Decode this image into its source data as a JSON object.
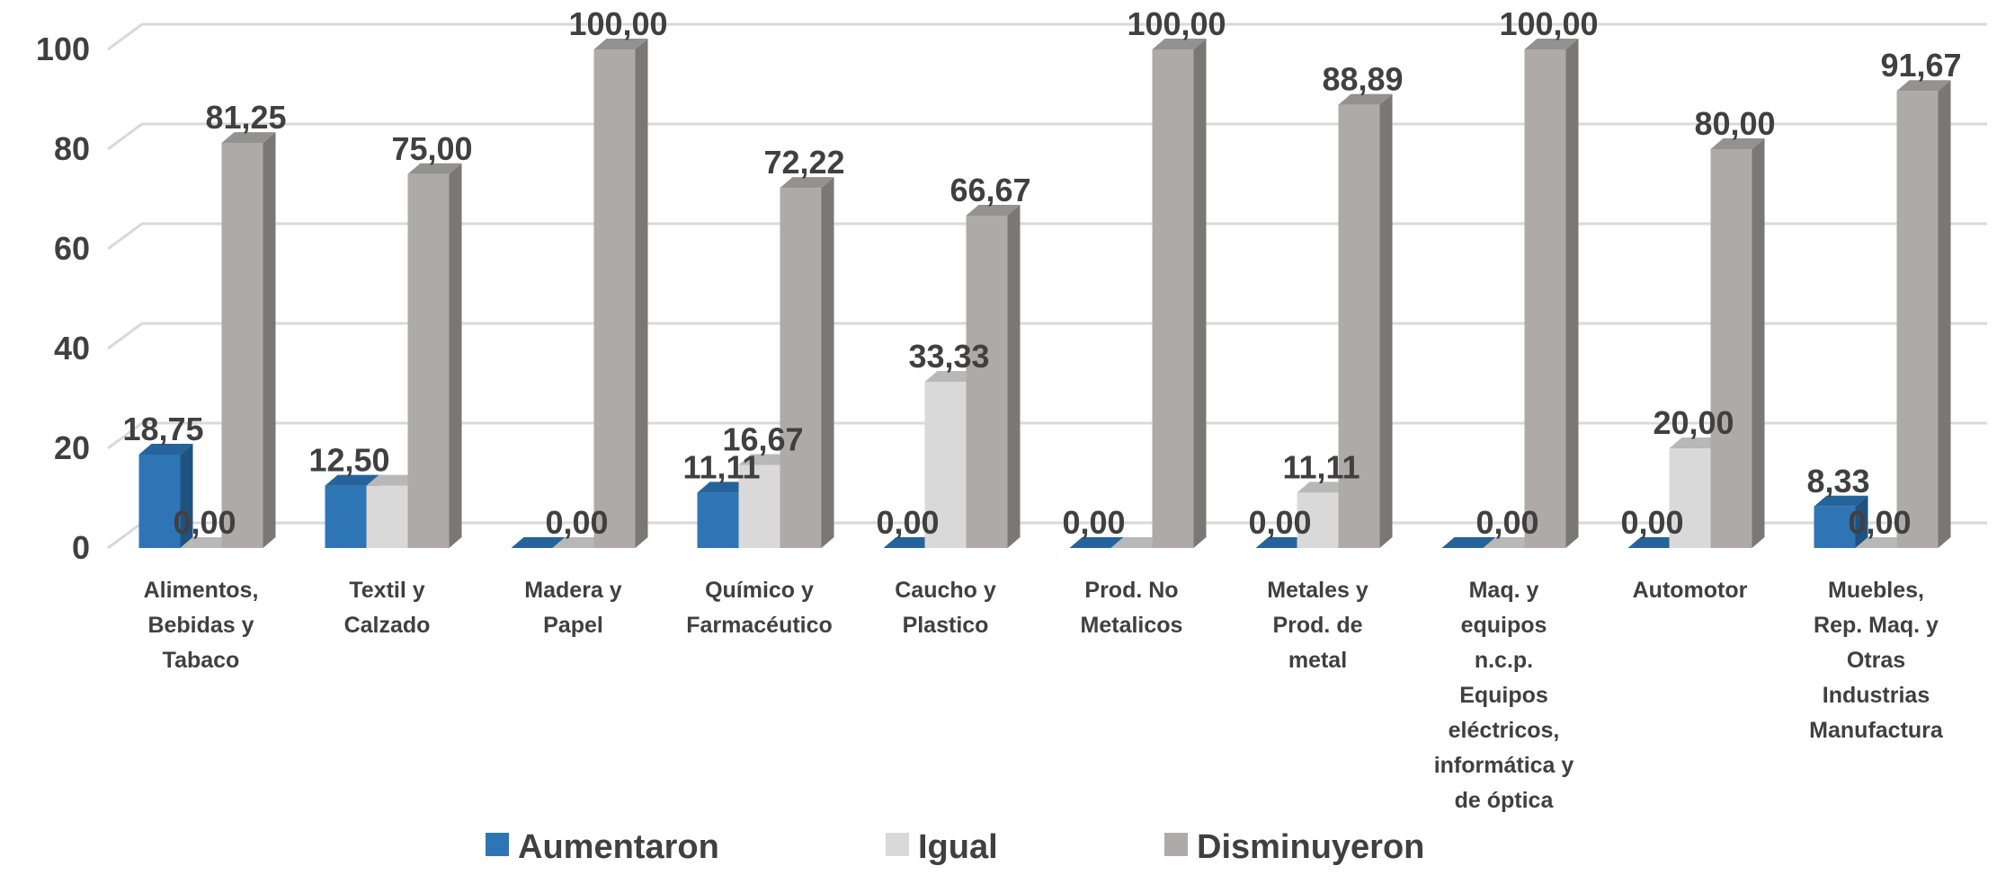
{
  "chart_data": {
    "type": "bar",
    "categories": [
      [
        "Alimentos,",
        "Bebidas y",
        "Tabaco"
      ],
      [
        "Textil y",
        "Calzado"
      ],
      [
        "Madera y",
        "Papel"
      ],
      [
        "Químico y",
        "Farmacéutico"
      ],
      [
        "Caucho y",
        "Plastico"
      ],
      [
        "Prod. No",
        "Metalicos"
      ],
      [
        "Metales y",
        "Prod. de",
        "metal"
      ],
      [
        "Maq. y",
        "equipos",
        "n.c.p.",
        "Equipos",
        "eléctricos,",
        "informática y",
        "de óptica"
      ],
      [
        "Automotor"
      ],
      [
        "Muebles,",
        "Rep. Maq. y",
        "Otras",
        "Industrias",
        "Manufactura"
      ]
    ],
    "series": [
      {
        "name": "Aumentaron",
        "values": [
          18.75,
          12.5,
          0.0,
          11.11,
          0.0,
          0.0,
          0.0,
          0.0,
          0.0,
          8.33
        ],
        "labels": [
          "18,75",
          "12,50",
          "",
          "11,11",
          "0,00",
          "0,00",
          "0,00",
          "",
          "0,00",
          "8,33"
        ],
        "color": "#2e75b6"
      },
      {
        "name": "Igual",
        "values": [
          0.0,
          12.5,
          0.0,
          16.67,
          33.33,
          0.0,
          11.11,
          0.0,
          20.0,
          0.0
        ],
        "labels": [
          "0,00",
          "",
          "0,00",
          "16,67",
          "33,33",
          "",
          "11,11",
          "0,00",
          "20,00",
          "0,00"
        ],
        "color": "#d9d9d9"
      },
      {
        "name": "Disminuyeron",
        "values": [
          81.25,
          75.0,
          100.0,
          72.22,
          66.67,
          100.0,
          88.89,
          100.0,
          80.0,
          91.67
        ],
        "labels": [
          "81,25",
          "75,00",
          "100,00",
          "72,22",
          "66,67",
          "100,00",
          "88,89",
          "100,00",
          "80,00",
          "91,67"
        ],
        "color": "#aeaaaa"
      }
    ],
    "y_ticks": [
      "0",
      "20",
      "40",
      "60",
      "80",
      "100"
    ],
    "ylim": [
      0,
      100
    ],
    "grid": true,
    "legend_position": "bottom",
    "style": "3d-clustered-column"
  }
}
